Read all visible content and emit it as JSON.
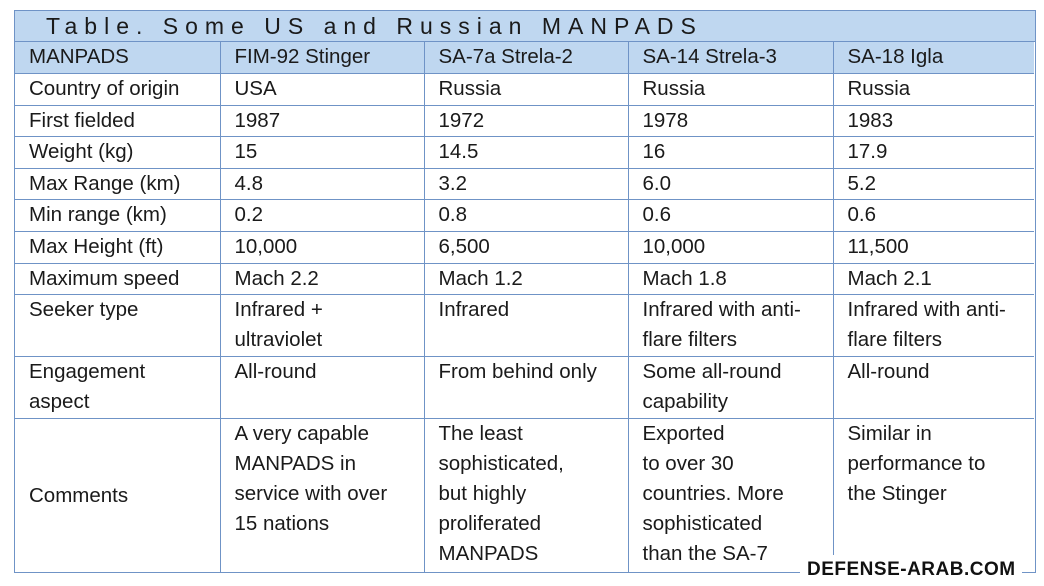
{
  "caption": "Table. Some US and Russian MANPADS",
  "header": [
    "MANPADS",
    "FIM-92 Stinger",
    "SA-7a Strela-2",
    "SA-14 Strela-3",
    "SA-18 Igla"
  ],
  "rows": [
    {
      "label": "Country of origin",
      "values": [
        "USA",
        "Russia",
        "Russia",
        "Russia"
      ]
    },
    {
      "label": "First fielded",
      "values": [
        "1987",
        "1972",
        "1978",
        "1983"
      ]
    },
    {
      "label": "Weight (kg)",
      "values": [
        "15",
        "14.5",
        "16",
        "17.9"
      ]
    },
    {
      "label": "Max Range (km)",
      "values": [
        "4.8",
        "3.2",
        "6.0",
        "5.2"
      ]
    },
    {
      "label": "Min range (km)",
      "values": [
        "0.2",
        "0.8",
        "0.6",
        "0.6"
      ]
    },
    {
      "label": "Max Height (ft)",
      "values": [
        "10,000",
        "6,500",
        "10,000",
        "11,500"
      ]
    },
    {
      "label": "Maximum speed",
      "values": [
        "Mach 2.2",
        "Mach 1.2",
        "Mach 1.8",
        "Mach 2.1"
      ]
    },
    {
      "label": "Seeker type",
      "values": [
        "Infrared +\nultraviolet",
        "Infrared",
        "Infrared with anti-\nflare filters",
        "Infrared with anti-\nflare filters"
      ]
    },
    {
      "label": "Engagement\naspect",
      "values": [
        "All-round",
        "From behind only",
        "Some all-round\ncapability",
        "All-round"
      ]
    },
    {
      "label": "Comments",
      "values": [
        "A very capable\nMANPADS in\nservice with over\n15 nations",
        "The least\nsophisticated,\nbut highly\nproliferated\nMANPADS",
        "Exported\nto over 30\ncountries. More\nsophisticated\nthan the SA-7",
        "Similar in\nperformance to\nthe Stinger"
      ]
    }
  ],
  "watermark": "DEFENSE-ARAB.COM",
  "colors": {
    "header_bg": "#bfd7f0",
    "border": "#6f93c6",
    "text": "#1a1a1a"
  }
}
